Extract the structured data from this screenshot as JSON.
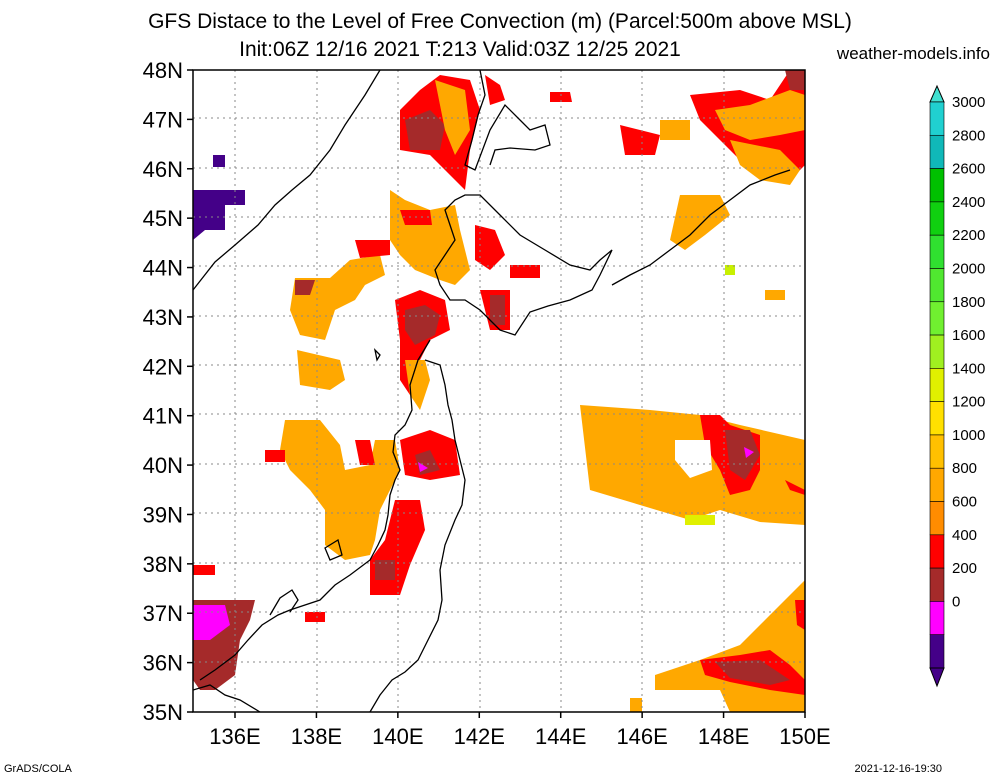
{
  "title_line1": "GFS Distace to the Level of Free Convection (m) (Parcel:500m above MSL)",
  "title_line2": "Init:06Z 12/16 2021 T:213 Valid:03Z 12/25 2021",
  "site": "weather-models.info",
  "footer_left": "GrADS/COLA",
  "footer_right": "2021-12-16-19:30",
  "lat_labels": [
    "48N",
    "47N",
    "46N",
    "45N",
    "44N",
    "43N",
    "42N",
    "41N",
    "40N",
    "39N",
    "38N",
    "37N",
    "36N",
    "35N"
  ],
  "lon_labels": [
    "136E",
    "138E",
    "140E",
    "142E",
    "144E",
    "146E",
    "148E",
    "150E"
  ],
  "colorbar": {
    "labels": [
      "3000",
      "2800",
      "2600",
      "2400",
      "2200",
      "2000",
      "1800",
      "1600",
      "1400",
      "1200",
      "1000",
      "800",
      "600",
      "400",
      "200",
      "0"
    ],
    "colors": [
      "#20d0d0",
      "#10b8b8",
      "#00c000",
      "#10d010",
      "#30e030",
      "#50e830",
      "#70f030",
      "#a0f020",
      "#e0f000",
      "#ffe000",
      "#ffc000",
      "#ffa800",
      "#ff8c00",
      "#ff0000",
      "#a52a2a",
      "#ff00ff",
      "#440088"
    ],
    "top_arrow_color": "#40e0d0",
    "bottom_arrow_color": "#440088"
  }
}
